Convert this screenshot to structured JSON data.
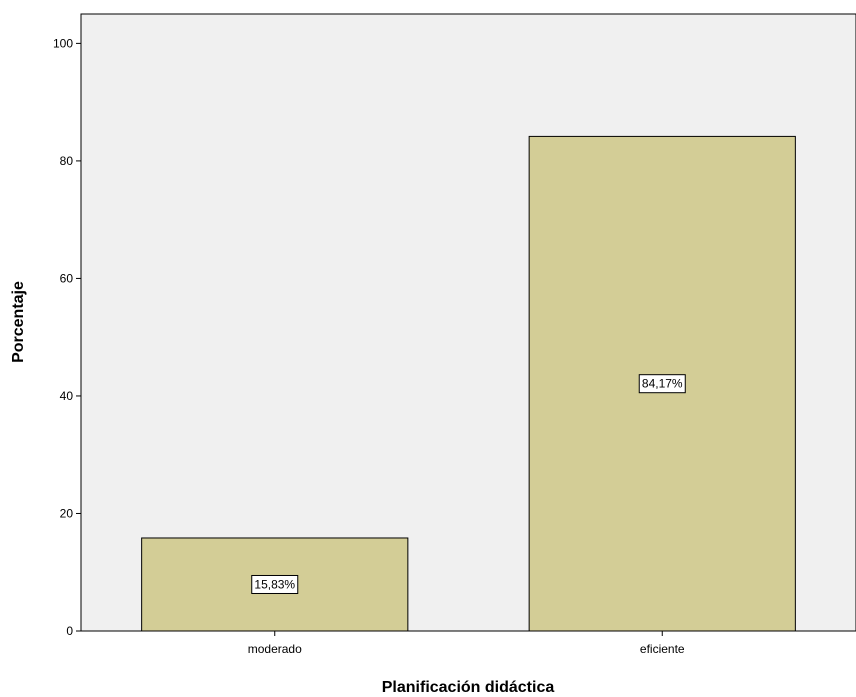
{
  "chart_data": {
    "type": "bar",
    "xlabel": "Planificación didáctica",
    "ylabel": "Porcentaje",
    "categories": [
      "moderado",
      "eficiente"
    ],
    "values": [
      15.83,
      84.17
    ],
    "data_labels": [
      "15,83%",
      "84,17%"
    ],
    "ylim": [
      0,
      105
    ],
    "yticks": [
      0,
      20,
      40,
      60,
      80,
      100
    ],
    "grid": false,
    "colors": {
      "bar_fill": "#d3cd96",
      "bar_stroke": "#000000",
      "plot_background": "#f0f0f0",
      "page_background": "#ffffff"
    }
  }
}
